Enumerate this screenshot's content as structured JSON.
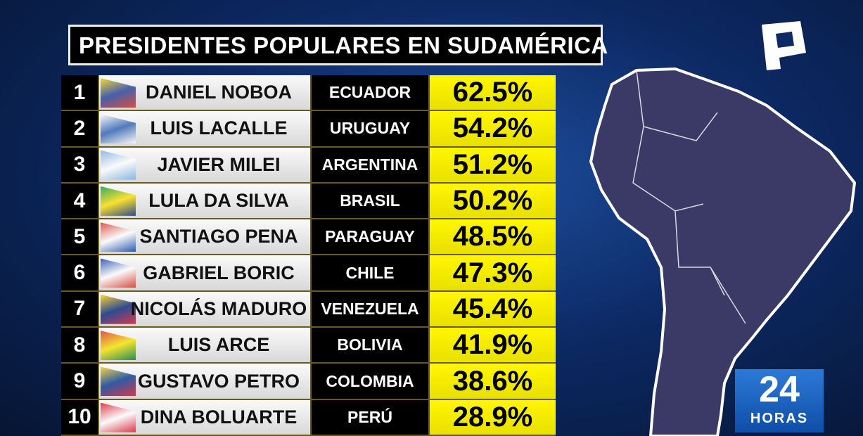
{
  "header": {
    "title": "PRESIDENTES POPULARES EN SUDAMÉRICA"
  },
  "table": {
    "rows": [
      [
        "1",
        "DANIEL NOBOA",
        "ECUADOR",
        "62.5%"
      ],
      [
        "2",
        "LUIS LACALLE",
        "URUGUAY",
        "54.2%"
      ],
      [
        "3",
        "JAVIER MILEI",
        "ARGENTINA",
        "51.2%"
      ],
      [
        "4",
        "LULA DA SILVA",
        "BRASIL",
        "50.2%"
      ],
      [
        "5",
        "SANTIAGO PENA",
        "PARAGUAY",
        "48.5%"
      ],
      [
        "6",
        "GABRIEL BORIC",
        "CHILE",
        "47.3%"
      ],
      [
        "7",
        "NICOLÁS MADURO",
        "VENEZUELA",
        "45.4%"
      ],
      [
        "8",
        "LUIS ARCE",
        "BOLIVIA",
        "41.9%"
      ],
      [
        "9",
        "GUSTAVO PETRO",
        "COLOMBIA",
        "38.6%"
      ],
      [
        "10",
        "DINA BOLUARTE",
        "PERÚ",
        "28.9%"
      ]
    ]
  },
  "logo": {
    "number": "24",
    "text": "HORAS"
  }
}
